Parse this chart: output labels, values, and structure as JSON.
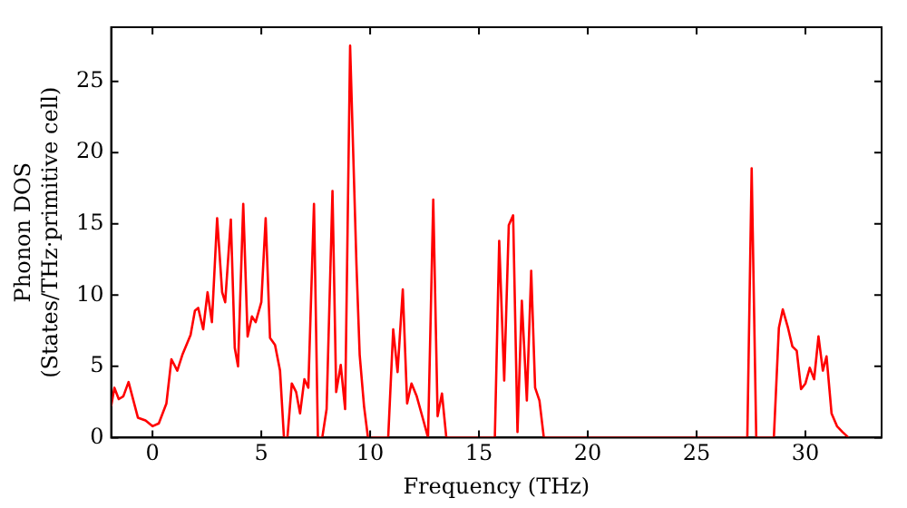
{
  "chart_data": {
    "type": "line",
    "xlabel": "Frequency (THz)",
    "ylabel": "Phonon DOS\n(States/THz·primitive cell)",
    "xlim": [
      -1.9,
      33.5
    ],
    "ylim": [
      0,
      28.8
    ],
    "xticks": [
      0,
      5,
      10,
      15,
      20,
      25,
      30
    ],
    "yticks": [
      0,
      5,
      10,
      15,
      20,
      25
    ],
    "grid": false,
    "legend": false,
    "marker": "none",
    "line_style": "solid",
    "series": [
      {
        "color": "#ff0000",
        "x": [
          -1.9,
          -1.75,
          -1.55,
          -1.34,
          -1.1,
          -0.67,
          -0.32,
          0,
          0.29,
          0.64,
          0.87,
          1.14,
          1.37,
          1.75,
          1.95,
          2.1,
          2.33,
          2.53,
          2.73,
          2.97,
          3.2,
          3.34,
          3.6,
          3.78,
          3.93,
          4.17,
          4.37,
          4.57,
          4.74,
          5.0,
          5.2,
          5.4,
          5.63,
          5.86,
          6.04,
          6.2,
          6.4,
          6.6,
          6.78,
          6.98,
          7.16,
          7.42,
          7.6,
          7.8,
          8.0,
          8.27,
          8.44,
          8.65,
          8.85,
          9.08,
          9.37,
          9.52,
          9.72,
          9.9,
          10.83,
          11.06,
          11.26,
          11.5,
          11.7,
          11.9,
          12.14,
          12.43,
          12.66,
          12.9,
          13.1,
          13.3,
          13.5,
          15.73,
          15.93,
          16.16,
          16.37,
          16.57,
          16.77,
          16.97,
          17.2,
          17.4,
          17.58,
          17.78,
          17.98,
          27.33,
          27.53,
          27.74,
          28.55,
          28.78,
          28.96,
          29.2,
          29.4,
          29.6,
          29.8,
          30.0,
          30.2,
          30.4,
          30.6,
          30.8,
          30.97,
          31.2,
          31.45,
          31.7,
          31.98
        ],
        "values": [
          2.2,
          3.5,
          2.7,
          2.9,
          3.9,
          1.4,
          1.2,
          0.8,
          1.0,
          2.4,
          5.5,
          4.7,
          5.8,
          7.2,
          8.9,
          9.1,
          7.6,
          10.2,
          8.1,
          15.4,
          10.2,
          9.5,
          15.3,
          6.3,
          5.0,
          16.4,
          7.1,
          8.5,
          8.1,
          9.5,
          15.4,
          7.0,
          6.5,
          4.7,
          0,
          0,
          3.8,
          3.2,
          1.7,
          4.1,
          3.5,
          16.4,
          0,
          0,
          2.0,
          17.3,
          3.2,
          5.1,
          2.0,
          27.5,
          12.2,
          5.8,
          2.2,
          0,
          0,
          7.6,
          4.6,
          10.4,
          2.4,
          3.8,
          2.9,
          1.3,
          0,
          16.7,
          1.5,
          3.1,
          0,
          0,
          13.8,
          4.0,
          14.9,
          15.6,
          0.4,
          9.6,
          2.6,
          11.7,
          3.5,
          2.6,
          0,
          0,
          18.9,
          0,
          0,
          7.7,
          9.0,
          7.7,
          6.4,
          6.1,
          3.4,
          3.8,
          4.9,
          4.1,
          7.1,
          4.7,
          5.7,
          1.7,
          0.8,
          0.4,
          0
        ]
      }
    ]
  }
}
